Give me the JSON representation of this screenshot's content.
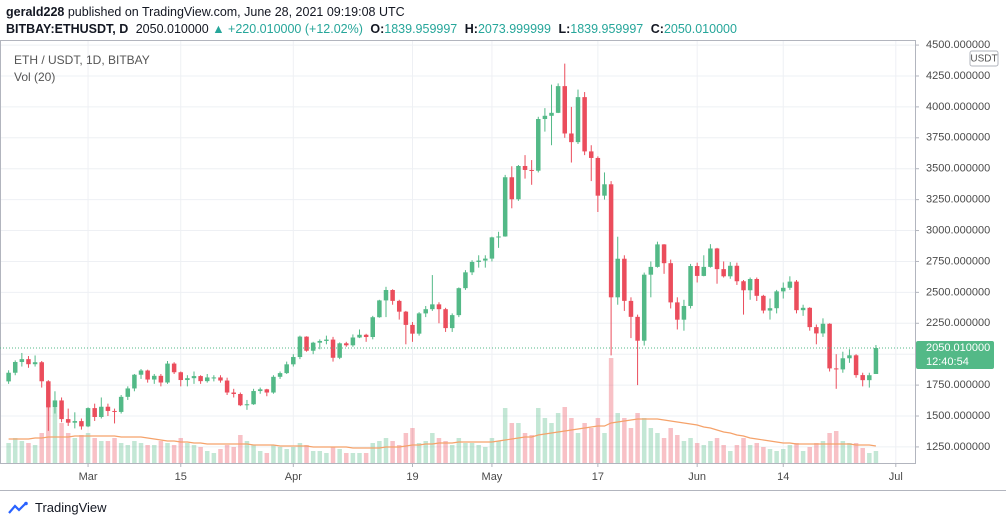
{
  "header": {
    "publisher": "gerald228",
    "published": "published on TradingView.com, June 28, 2021 09:19:08 UTC",
    "symbol": "BITBAY:ETHUSDT, D",
    "price": "2050.010000",
    "change": "▲ +220.010000 (+12.02%)",
    "ohlc": [
      {
        "label": "O:",
        "value": "1839.959997"
      },
      {
        "label": "H:",
        "value": "2073.999999"
      },
      {
        "label": "L:",
        "value": "1839.959997"
      },
      {
        "label": "C:",
        "value": "2050.010000"
      }
    ]
  },
  "footer": {
    "brand": "TradingView"
  },
  "chart_data": {
    "type": "candlestick",
    "title": "ETH / USDT, 1D, BITBAY",
    "currency": "USDT",
    "up_color": "#53b987",
    "down_color": "#eb4d5c",
    "grid": true,
    "open": [
      1780,
      1850,
      1937,
      1960,
      1919,
      1935,
      1781,
      1570,
      1626,
      1475,
      1446,
      1459,
      1416,
      1564,
      1492,
      1575,
      1541,
      1533,
      1655,
      1723,
      1834,
      1868,
      1795,
      1825,
      1771,
      1924,
      1854,
      1791,
      1806,
      1823,
      1782,
      1812,
      1812,
      1787,
      1690,
      1678,
      1587,
      1595,
      1702,
      1716,
      1690,
      1817,
      1847,
      1918,
      1977,
      2142,
      2028,
      2093,
      2107,
      2118,
      1971,
      2088,
      2072,
      2135,
      2157,
      2139,
      2299,
      2435,
      2519,
      2431,
      2344,
      2237,
      2166,
      2330,
      2364,
      2403,
      2364,
      2211,
      2316,
      2534,
      2662,
      2746,
      2757,
      2773,
      2945,
      2952,
      3431,
      3253,
      3522,
      3490,
      3484,
      3902,
      3928,
      3952,
      4168,
      3785,
      3715,
      4079,
      3640,
      3587,
      3282,
      3374,
      2460,
      2772,
      2431,
      2302,
      2109,
      2643,
      2706,
      2888,
      2736,
      2419,
      2279,
      2390,
      2713,
      2633,
      2706,
      2855,
      2688,
      2630,
      2715,
      2590,
      2517,
      2608,
      2472,
      2353,
      2372,
      2508,
      2537,
      2587,
      2356,
      2375,
      2219,
      2168,
      2246,
      1885,
      1877,
      1967,
      1991,
      1831,
      1790,
      1839.959997
    ],
    "high": [
      1870,
      1950,
      2010,
      1985,
      1990,
      1945,
      1790,
      1700,
      1650,
      1560,
      1530,
      1480,
      1570,
      1600,
      1650,
      1600,
      1560,
      1670,
      1740,
      1840,
      1880,
      1875,
      1840,
      1840,
      1945,
      1935,
      1860,
      1830,
      1860,
      1830,
      1840,
      1830,
      1830,
      1810,
      1720,
      1690,
      1630,
      1720,
      1730,
      1720,
      1830,
      1860,
      1940,
      2000,
      2150,
      2145,
      2100,
      2120,
      2150,
      2140,
      2095,
      2100,
      2160,
      2200,
      2165,
      2310,
      2440,
      2545,
      2525,
      2440,
      2350,
      2260,
      2340,
      2390,
      2640,
      2420,
      2375,
      2330,
      2540,
      2680,
      2760,
      2800,
      2800,
      2950,
      2990,
      3450,
      3520,
      3530,
      3610,
      3570,
      3920,
      3990,
      4180,
      4190,
      4350,
      4000,
      4140,
      4120,
      3690,
      3600,
      3470,
      3400,
      2950,
      2800,
      2460,
      2320,
      2660,
      2750,
      2910,
      2890,
      2765,
      2460,
      2440,
      2730,
      2740,
      2800,
      2890,
      2860,
      2750,
      2745,
      2740,
      2600,
      2620,
      2620,
      2480,
      2450,
      2520,
      2580,
      2630,
      2600,
      2400,
      2380,
      2240,
      2290,
      2250,
      2000,
      2020,
      2040,
      2000,
      1850,
      1850,
      2073.999999
    ],
    "low": [
      1760,
      1830,
      1900,
      1890,
      1900,
      1730,
      1380,
      1520,
      1450,
      1420,
      1400,
      1390,
      1410,
      1460,
      1480,
      1500,
      1440,
      1520,
      1630,
      1700,
      1800,
      1770,
      1760,
      1740,
      1760,
      1840,
      1740,
      1740,
      1760,
      1760,
      1770,
      1780,
      1770,
      1670,
      1650,
      1580,
      1550,
      1590,
      1680,
      1660,
      1680,
      1800,
      1840,
      1900,
      1960,
      2020,
      2000,
      2040,
      2080,
      1940,
      1960,
      2060,
      2060,
      2130,
      2100,
      2120,
      2295,
      2300,
      2400,
      2280,
      2080,
      2100,
      2150,
      2300,
      2350,
      2250,
      2180,
      2180,
      2300,
      2520,
      2640,
      2700,
      2700,
      2750,
      2860,
      2950,
      3180,
      3240,
      3420,
      3370,
      3470,
      3800,
      3690,
      3950,
      3750,
      3550,
      3700,
      3610,
      3400,
      3150,
      3250,
      1990,
      2400,
      2350,
      2130,
      1750,
      2070,
      2460,
      2700,
      2650,
      2370,
      2200,
      2190,
      2370,
      2580,
      2630,
      2700,
      2570,
      2620,
      2610,
      2560,
      2320,
      2440,
      2430,
      2330,
      2280,
      2330,
      2450,
      2520,
      2330,
      2310,
      2190,
      2080,
      2140,
      1860,
      1720,
      1850,
      1930,
      1810,
      1740,
      1730,
      1839.959997
    ],
    "close": [
      1850,
      1937,
      1960,
      1919,
      1935,
      1781,
      1570,
      1626,
      1475,
      1446,
      1459,
      1416,
      1564,
      1492,
      1575,
      1541,
      1533,
      1655,
      1723,
      1834,
      1868,
      1795,
      1825,
      1771,
      1924,
      1854,
      1791,
      1806,
      1823,
      1782,
      1812,
      1812,
      1787,
      1690,
      1678,
      1587,
      1595,
      1702,
      1716,
      1690,
      1817,
      1847,
      1918,
      1977,
      2142,
      2028,
      2093,
      2107,
      2118,
      1971,
      2088,
      2072,
      2135,
      2157,
      2139,
      2299,
      2435,
      2519,
      2431,
      2344,
      2237,
      2166,
      2330,
      2364,
      2403,
      2364,
      2211,
      2316,
      2534,
      2662,
      2746,
      2757,
      2773,
      2945,
      2952,
      3431,
      3253,
      3522,
      3490,
      3484,
      3902,
      3928,
      3952,
      4168,
      3785,
      3715,
      4079,
      3640,
      3587,
      3282,
      3374,
      2460,
      2772,
      2431,
      2302,
      2109,
      2643,
      2706,
      2888,
      2736,
      2419,
      2279,
      2390,
      2713,
      2633,
      2706,
      2855,
      2688,
      2630,
      2715,
      2590,
      2517,
      2608,
      2472,
      2353,
      2372,
      2508,
      2537,
      2587,
      2356,
      2375,
      2219,
      2168,
      2246,
      1885,
      1877,
      1967,
      1991,
      1831,
      1790,
      1830,
      2050.01
    ],
    "volume": [
      20,
      25,
      22,
      20,
      18,
      30,
      63,
      55,
      40,
      30,
      25,
      28,
      30,
      25,
      22,
      22,
      25,
      20,
      18,
      22,
      20,
      18,
      18,
      22,
      20,
      18,
      25,
      20,
      18,
      16,
      12,
      10,
      14,
      18,
      16,
      28,
      22,
      18,
      12,
      10,
      18,
      16,
      14,
      16,
      20,
      18,
      12,
      12,
      10,
      16,
      14,
      10,
      10,
      10,
      10,
      20,
      22,
      25,
      22,
      18,
      30,
      35,
      20,
      22,
      30,
      25,
      22,
      18,
      25,
      20,
      20,
      18,
      16,
      25,
      22,
      55,
      40,
      40,
      30,
      28,
      55,
      45,
      40,
      50,
      56,
      45,
      30,
      40,
      35,
      45,
      30,
      105,
      50,
      45,
      35,
      50,
      45,
      35,
      30,
      25,
      35,
      28,
      22,
      25,
      20,
      18,
      22,
      25,
      18,
      12,
      18,
      25,
      18,
      20,
      16,
      14,
      12,
      14,
      18,
      20,
      12,
      16,
      20,
      22,
      30,
      32,
      22,
      20,
      20,
      15,
      10,
      12
    ],
    "volume_ma": {
      "name": "Vol (20)",
      "color": "#f5a26a",
      "values": [
        24,
        24,
        24,
        24,
        25,
        25,
        26,
        26,
        26,
        26,
        27,
        27,
        27,
        27,
        27,
        27,
        27,
        26,
        26,
        26,
        26,
        25,
        24,
        23,
        22,
        22,
        21,
        21,
        20,
        20,
        19,
        19,
        19,
        19,
        19,
        19,
        19,
        18,
        18,
        18,
        18,
        17,
        17,
        17,
        17,
        17,
        16,
        16,
        16,
        16,
        16,
        16,
        15,
        15,
        15,
        15,
        15,
        16,
        16,
        16,
        17,
        18,
        18,
        19,
        19,
        20,
        20,
        20,
        21,
        21,
        21,
        21,
        21,
        21,
        22,
        23,
        24,
        25,
        26,
        26,
        28,
        29,
        30,
        31,
        32,
        33,
        34,
        35,
        36,
        37,
        37,
        40,
        41,
        42,
        43,
        44,
        44,
        44,
        44,
        43,
        42,
        41,
        40,
        39,
        38,
        36,
        35,
        33,
        31,
        30,
        28,
        27,
        25,
        24,
        23,
        22,
        21,
        20,
        20,
        19,
        19,
        19,
        19,
        19,
        19,
        19,
        19,
        19,
        18,
        18,
        18,
        17
      ]
    },
    "last_price": {
      "value": 2050.01,
      "label": "2050.010000",
      "countdown": "12:40:54"
    },
    "xlim": [
      -1.3,
      136.9
    ],
    "xticks": [
      {
        "value": 12,
        "label": "Mar"
      },
      {
        "value": 26,
        "label": "15"
      },
      {
        "value": 43,
        "label": "Apr"
      },
      {
        "value": 61,
        "label": "19"
      },
      {
        "value": 73,
        "label": "May"
      },
      {
        "value": 89,
        "label": "17"
      },
      {
        "value": 104,
        "label": "Jun"
      },
      {
        "value": 117,
        "label": "14"
      },
      {
        "value": 134,
        "label": "Jul"
      }
    ],
    "ylim": [
      1120,
      4541
    ],
    "yticks": [
      {
        "value": 1250,
        "label": "1250.000000"
      },
      {
        "value": 1500,
        "label": "1500.000000"
      },
      {
        "value": 1750,
        "label": "1750.000000"
      },
      {
        "value": 2000,
        "label": "2000.000000"
      },
      {
        "value": 2250,
        "label": "2250.000000"
      },
      {
        "value": 2500,
        "label": "2500.000000"
      },
      {
        "value": 2750,
        "label": "2750.000000"
      },
      {
        "value": 3000,
        "label": "3000.000000"
      },
      {
        "value": 3250,
        "label": "3250.000000"
      },
      {
        "value": 3500,
        "label": "3500.000000"
      },
      {
        "value": 3750,
        "label": "3750.000000"
      },
      {
        "value": 4000,
        "label": "4000.000000"
      },
      {
        "value": 4250,
        "label": "4250.000000"
      },
      {
        "value": 4500,
        "label": "4500.000000"
      }
    ]
  }
}
